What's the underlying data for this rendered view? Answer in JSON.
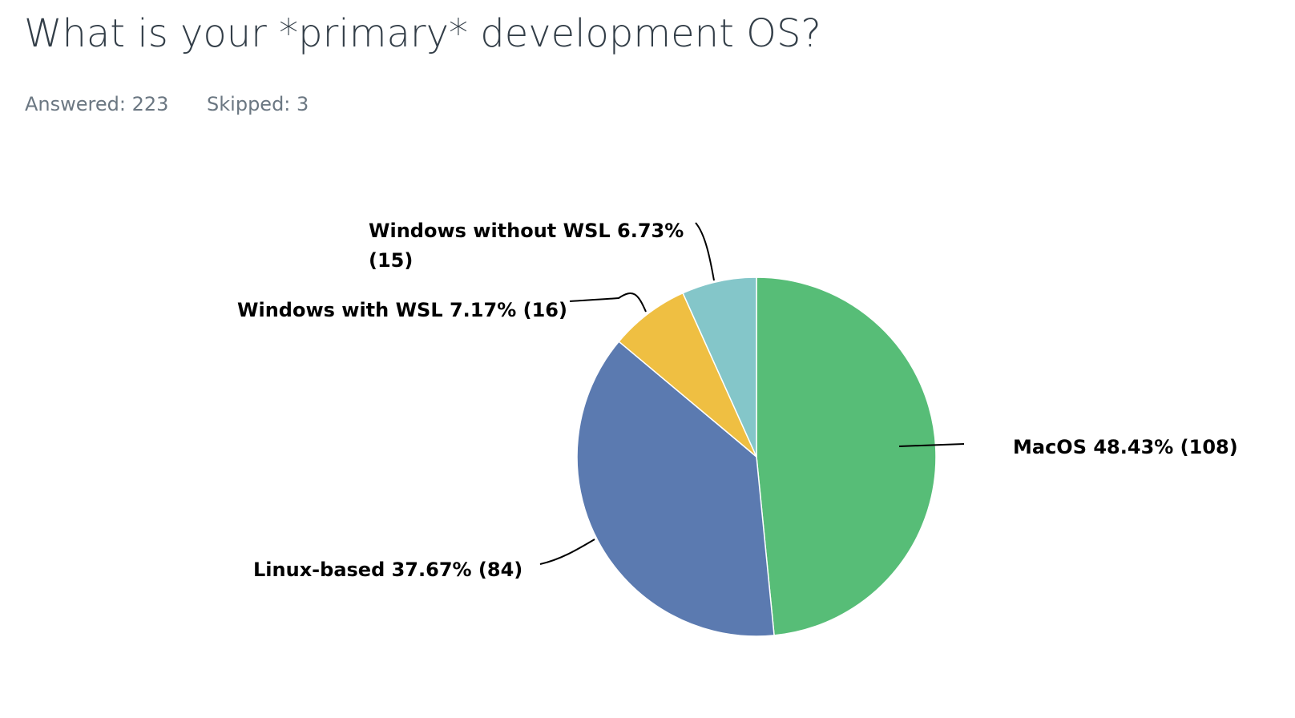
{
  "header": {
    "title": "What is your *primary* development OS?",
    "answered": "Answered: 223",
    "skipped": "Skipped: 3"
  },
  "chart_data": {
    "type": "pie",
    "title": "What is your *primary* development OS?",
    "slices": [
      {
        "name": "MacOS",
        "percent": 48.43,
        "count": 108,
        "label": "MacOS 48.43% (108)",
        "color": "#57bd77"
      },
      {
        "name": "Linux-based",
        "percent": 37.67,
        "count": 84,
        "label": "Linux-based 37.67% (84)",
        "color": "#5b7ab0"
      },
      {
        "name": "Windows with WSL",
        "percent": 7.17,
        "count": 16,
        "label": "Windows with WSL 7.17% (16)",
        "color": "#efbf42"
      },
      {
        "name": "Windows without WSL",
        "percent": 6.73,
        "count": 15,
        "label_lines": [
          "Windows without WSL 6.73%",
          "(15)"
        ],
        "color": "#84c6c9"
      }
    ]
  }
}
